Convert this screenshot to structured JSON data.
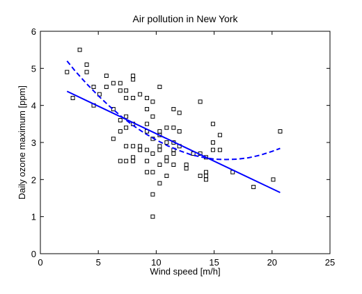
{
  "chart_data": {
    "type": "scatter",
    "title": "Air pollution in New York",
    "xlabel": "Wind speed [m/h]",
    "ylabel": "Daily ozone maximum [ppm]",
    "xlim": [
      0,
      25
    ],
    "ylim": [
      0,
      6
    ],
    "xticks": [
      0,
      5,
      10,
      15,
      20,
      25
    ],
    "yticks": [
      0,
      1,
      2,
      3,
      4,
      5,
      6
    ],
    "xtick_labels": [
      "0",
      "5",
      "10",
      "15",
      "20",
      "25"
    ],
    "ytick_labels": [
      "0",
      "1",
      "2",
      "3",
      "4",
      "5",
      "6"
    ],
    "grid": false,
    "legend": "none",
    "series": [
      {
        "kind": "points",
        "marker": "square",
        "color": "#000000",
        "points": [
          [
            2.3,
            4.9
          ],
          [
            2.8,
            4.2
          ],
          [
            3.4,
            5.5
          ],
          [
            4.0,
            5.1
          ],
          [
            4.0,
            4.9
          ],
          [
            4.6,
            4.5
          ],
          [
            4.6,
            4.0
          ],
          [
            5.1,
            4.3
          ],
          [
            5.7,
            4.8
          ],
          [
            5.7,
            4.5
          ],
          [
            6.3,
            4.6
          ],
          [
            6.3,
            3.9
          ],
          [
            6.3,
            3.1
          ],
          [
            6.9,
            4.6
          ],
          [
            6.9,
            4.4
          ],
          [
            6.9,
            3.6
          ],
          [
            6.9,
            3.3
          ],
          [
            6.9,
            2.5
          ],
          [
            7.4,
            4.4
          ],
          [
            7.4,
            4.2
          ],
          [
            7.4,
            3.7
          ],
          [
            7.4,
            3.4
          ],
          [
            7.4,
            2.9
          ],
          [
            7.4,
            2.5
          ],
          [
            8.0,
            4.8
          ],
          [
            8.0,
            4.7
          ],
          [
            8.0,
            4.2
          ],
          [
            8.0,
            3.5
          ],
          [
            8.0,
            2.9
          ],
          [
            8.0,
            2.6
          ],
          [
            8.0,
            2.5
          ],
          [
            8.6,
            4.3
          ],
          [
            8.6,
            2.9
          ],
          [
            8.6,
            2.8
          ],
          [
            9.2,
            4.2
          ],
          [
            9.2,
            3.9
          ],
          [
            9.2,
            3.5
          ],
          [
            9.2,
            3.3
          ],
          [
            9.2,
            2.8
          ],
          [
            9.2,
            2.5
          ],
          [
            9.2,
            2.2
          ],
          [
            9.7,
            4.1
          ],
          [
            9.7,
            3.7
          ],
          [
            9.7,
            3.1
          ],
          [
            9.7,
            2.7
          ],
          [
            9.7,
            2.2
          ],
          [
            9.7,
            1.6
          ],
          [
            9.7,
            1.0
          ],
          [
            10.3,
            4.5
          ],
          [
            10.3,
            3.3
          ],
          [
            10.3,
            3.2
          ],
          [
            10.3,
            2.9
          ],
          [
            10.3,
            2.8
          ],
          [
            10.3,
            2.4
          ],
          [
            10.3,
            1.9
          ],
          [
            10.9,
            3.4
          ],
          [
            10.9,
            3.0
          ],
          [
            10.9,
            2.6
          ],
          [
            10.9,
            2.5
          ],
          [
            10.9,
            2.1
          ],
          [
            11.5,
            3.9
          ],
          [
            11.5,
            3.4
          ],
          [
            11.5,
            3.0
          ],
          [
            11.5,
            2.8
          ],
          [
            11.5,
            2.7
          ],
          [
            11.5,
            2.4
          ],
          [
            12.0,
            3.8
          ],
          [
            12.0,
            3.3
          ],
          [
            12.0,
            2.9
          ],
          [
            12.6,
            2.3
          ],
          [
            12.6,
            2.4
          ],
          [
            13.2,
            2.7
          ],
          [
            13.8,
            4.1
          ],
          [
            13.8,
            2.7
          ],
          [
            13.8,
            2.1
          ],
          [
            14.3,
            2.6
          ],
          [
            14.3,
            2.2
          ],
          [
            14.3,
            2.1
          ],
          [
            14.3,
            2.0
          ],
          [
            14.9,
            3.5
          ],
          [
            14.9,
            3.0
          ],
          [
            14.9,
            2.8
          ],
          [
            15.5,
            3.2
          ],
          [
            15.5,
            2.8
          ],
          [
            16.6,
            2.2
          ],
          [
            18.4,
            1.8
          ],
          [
            20.1,
            2.0
          ],
          [
            20.7,
            3.3
          ]
        ]
      },
      {
        "kind": "line",
        "style": "solid",
        "color": "#0000ff",
        "x": [
          2.3,
          20.7
        ],
        "y": [
          4.38,
          1.65
        ]
      },
      {
        "kind": "line",
        "style": "dashed",
        "color": "#0000ff",
        "x": [
          2.3,
          3.0,
          4.0,
          5.0,
          6.0,
          7.0,
          8.0,
          9.0,
          10.0,
          11.0,
          12.0,
          13.0,
          14.0,
          15.0,
          16.0,
          17.0,
          18.0,
          19.0,
          20.0,
          20.7
        ],
        "y": [
          5.2,
          4.93,
          4.58,
          4.26,
          3.97,
          3.7,
          3.46,
          3.25,
          3.07,
          2.91,
          2.78,
          2.67,
          2.6,
          2.55,
          2.54,
          2.55,
          2.59,
          2.66,
          2.76,
          2.84
        ]
      }
    ]
  }
}
